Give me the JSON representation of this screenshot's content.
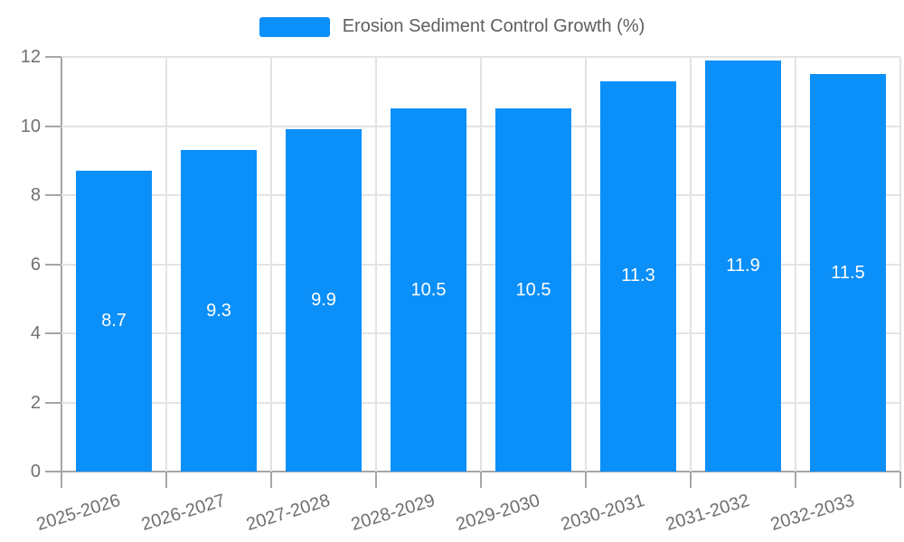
{
  "legend": {
    "label": "Erosion Sediment Control Growth (%)"
  },
  "colors": {
    "bar": "#0b8ff9",
    "grid": "#e3e3e3",
    "axis": "#a6a6a6",
    "tick_label": "#707070",
    "legend_text": "#5e5e5e",
    "value_label": "#ffffff"
  },
  "chart_data": {
    "type": "bar",
    "title": "Erosion Sediment Control Growth (%)",
    "categories": [
      "2025-2026",
      "2026-2027",
      "2027-2028",
      "2028-2029",
      "2029-2030",
      "2030-2031",
      "2031-2032",
      "2032-2033"
    ],
    "values": [
      8.7,
      9.3,
      9.9,
      10.5,
      10.5,
      11.3,
      11.9,
      11.5
    ],
    "xlabel": "",
    "ylabel": "",
    "ylim": [
      0,
      12
    ],
    "yticks": [
      0,
      2,
      4,
      6,
      8,
      10,
      12
    ],
    "grid": true,
    "legend_position": "top-center",
    "value_labels": "inside-center",
    "x_label_rotation_deg": -17
  }
}
